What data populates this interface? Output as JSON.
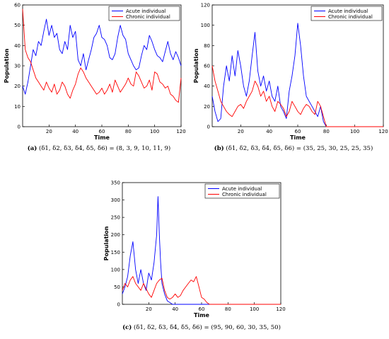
{
  "chart_data": [
    {
      "type": "line",
      "caption_label": "(a)",
      "caption_text": "(δ1, δ2, δ3, δ4, δ5, δ6) = (8, 3, 9, 10, 11, 9)",
      "xlabel": "Time",
      "ylabel": "Population",
      "xlim": [
        0,
        120
      ],
      "ylim": [
        0,
        60
      ],
      "xticks": [
        20,
        40,
        60,
        80,
        100,
        120
      ],
      "yticks": [
        0,
        10,
        20,
        30,
        40,
        50,
        60
      ],
      "legend_position": "top-right",
      "series": [
        {
          "name": "Acute individual",
          "color": "#0000ff",
          "x": [
            0,
            2,
            4,
            6,
            8,
            10,
            12,
            14,
            16,
            18,
            20,
            22,
            24,
            26,
            28,
            30,
            32,
            34,
            36,
            38,
            40,
            42,
            44,
            46,
            48,
            50,
            52,
            54,
            56,
            58,
            60,
            62,
            64,
            66,
            68,
            70,
            72,
            74,
            76,
            78,
            80,
            82,
            84,
            86,
            88,
            90,
            92,
            94,
            96,
            98,
            100,
            102,
            104,
            106,
            108,
            110,
            112,
            114,
            116,
            118,
            120
          ],
          "y": [
            20,
            16,
            22,
            30,
            38,
            35,
            42,
            40,
            47,
            53,
            45,
            50,
            44,
            46,
            38,
            36,
            42,
            38,
            50,
            44,
            47,
            33,
            30,
            36,
            28,
            33,
            38,
            44,
            46,
            50,
            44,
            43,
            40,
            34,
            33,
            36,
            44,
            50,
            45,
            43,
            36,
            33,
            30,
            28,
            29,
            35,
            40,
            38,
            45,
            42,
            38,
            35,
            34,
            32,
            37,
            42,
            36,
            33,
            37,
            34,
            30
          ]
        },
        {
          "name": "Chronic individual",
          "color": "#ff0000",
          "x": [
            0,
            2,
            4,
            6,
            8,
            10,
            12,
            14,
            16,
            18,
            20,
            22,
            24,
            26,
            28,
            30,
            32,
            34,
            36,
            38,
            40,
            42,
            44,
            46,
            48,
            50,
            52,
            54,
            56,
            58,
            60,
            62,
            64,
            66,
            68,
            70,
            72,
            74,
            76,
            78,
            80,
            82,
            84,
            86,
            88,
            90,
            92,
            94,
            96,
            98,
            100,
            102,
            104,
            106,
            108,
            110,
            112,
            114,
            116,
            118,
            120
          ],
          "y": [
            58,
            38,
            34,
            32,
            28,
            24,
            22,
            20,
            18,
            22,
            19,
            17,
            21,
            16,
            18,
            22,
            20,
            16,
            14,
            18,
            21,
            26,
            29,
            27,
            24,
            22,
            20,
            18,
            16,
            17,
            19,
            16,
            18,
            21,
            17,
            23,
            20,
            17,
            19,
            21,
            24,
            21,
            20,
            27,
            25,
            22,
            19,
            20,
            23,
            18,
            27,
            26,
            22,
            21,
            19,
            20,
            16,
            15,
            13,
            12,
            24
          ]
        }
      ]
    },
    {
      "type": "line",
      "caption_label": "(b)",
      "caption_text": "(δ1, δ2, δ3, δ4, δ5, δ6) = (35, 25, 30, 25, 25, 35)",
      "xlabel": "Time",
      "ylabel": "Population",
      "xlim": [
        0,
        120
      ],
      "ylim": [
        0,
        120
      ],
      "xticks": [
        20,
        40,
        60,
        80,
        100,
        120
      ],
      "yticks": [
        0,
        20,
        40,
        60,
        80,
        100,
        120
      ],
      "legend_position": "top-right",
      "series": [
        {
          "name": "Acute individual",
          "color": "#0000ff",
          "x": [
            0,
            2,
            4,
            6,
            8,
            10,
            12,
            14,
            16,
            18,
            20,
            22,
            24,
            26,
            28,
            30,
            32,
            34,
            36,
            38,
            40,
            42,
            44,
            46,
            48,
            50,
            52,
            54,
            56,
            58,
            60,
            62,
            64,
            66,
            68,
            70,
            72,
            74,
            76,
            78,
            80,
            82,
            84,
            100,
            120
          ],
          "y": [
            30,
            15,
            5,
            8,
            40,
            60,
            45,
            70,
            50,
            75,
            60,
            40,
            30,
            45,
            70,
            93,
            55,
            40,
            50,
            35,
            45,
            30,
            25,
            40,
            20,
            15,
            8,
            35,
            50,
            70,
            102,
            80,
            50,
            30,
            25,
            20,
            15,
            10,
            20,
            5,
            0,
            0,
            0,
            0,
            0
          ]
        },
        {
          "name": "Chronic individual",
          "color": "#ff0000",
          "x": [
            0,
            2,
            4,
            6,
            8,
            10,
            12,
            14,
            16,
            18,
            20,
            22,
            24,
            26,
            28,
            30,
            32,
            34,
            36,
            38,
            40,
            42,
            44,
            46,
            48,
            50,
            52,
            54,
            56,
            58,
            60,
            62,
            64,
            66,
            68,
            70,
            72,
            74,
            76,
            78,
            80,
            82,
            84,
            100,
            120
          ],
          "y": [
            60,
            45,
            35,
            25,
            20,
            15,
            12,
            10,
            15,
            20,
            22,
            18,
            25,
            30,
            35,
            45,
            40,
            30,
            35,
            25,
            30,
            20,
            15,
            25,
            22,
            18,
            10,
            15,
            25,
            20,
            15,
            12,
            18,
            22,
            20,
            15,
            12,
            25,
            20,
            10,
            0,
            0,
            0,
            0,
            0
          ]
        }
      ]
    },
    {
      "type": "line",
      "caption_label": "(c)",
      "caption_text": "(δ1, δ2, δ3, δ4, δ5, δ6) = (95, 90, 60, 30, 35, 50)",
      "xlabel": "Time",
      "ylabel": "Population",
      "xlim": [
        0,
        120
      ],
      "ylim": [
        0,
        350
      ],
      "xticks": [
        20,
        40,
        60,
        80,
        100,
        120
      ],
      "yticks": [
        0,
        50,
        100,
        150,
        200,
        250,
        300,
        350
      ],
      "legend_position": "top-right",
      "series": [
        {
          "name": "Acute individual",
          "color": "#0000ff",
          "x": [
            0,
            2,
            4,
            6,
            8,
            10,
            12,
            14,
            16,
            18,
            20,
            22,
            24,
            26,
            27,
            28,
            29,
            30,
            32,
            34,
            36,
            38,
            40,
            50,
            60,
            80,
            100,
            120
          ],
          "y": [
            30,
            50,
            80,
            140,
            180,
            100,
            60,
            100,
            60,
            40,
            90,
            70,
            120,
            200,
            310,
            200,
            120,
            60,
            30,
            10,
            5,
            0,
            0,
            0,
            0,
            0,
            0,
            0
          ]
        },
        {
          "name": "Chronic individual",
          "color": "#ff0000",
          "x": [
            0,
            2,
            4,
            6,
            8,
            10,
            12,
            14,
            16,
            18,
            20,
            22,
            24,
            26,
            28,
            30,
            32,
            34,
            36,
            38,
            40,
            42,
            44,
            46,
            48,
            50,
            52,
            54,
            56,
            58,
            60,
            62,
            64,
            66,
            70,
            80,
            100,
            120
          ],
          "y": [
            40,
            60,
            50,
            70,
            80,
            60,
            50,
            40,
            60,
            45,
            30,
            20,
            40,
            60,
            70,
            75,
            40,
            20,
            15,
            20,
            30,
            20,
            25,
            40,
            50,
            60,
            70,
            65,
            80,
            50,
            20,
            15,
            5,
            0,
            0,
            0,
            0,
            0
          ]
        }
      ]
    }
  ]
}
